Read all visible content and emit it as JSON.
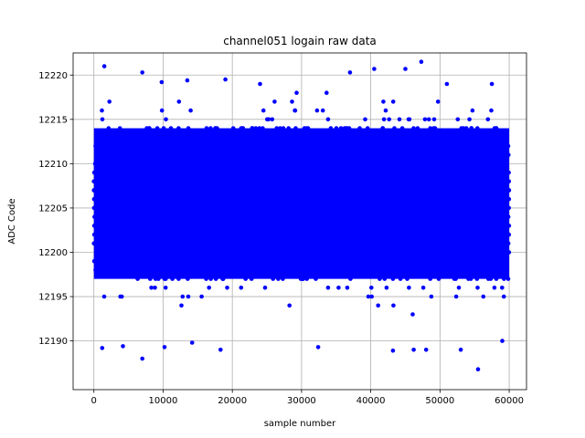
{
  "chart_data": {
    "type": "scatter",
    "title": "channel051 logain raw data",
    "xlabel": "sample number",
    "ylabel": "ADC Code",
    "xlim": [
      -3000,
      62500
    ],
    "ylim": [
      12184.5,
      12222.5
    ],
    "xticks": [
      0,
      10000,
      20000,
      30000,
      40000,
      50000,
      60000
    ],
    "yticks": [
      12190,
      12195,
      12200,
      12205,
      12210,
      12215,
      12220
    ],
    "grid": true,
    "marker_color": "#0000ff",
    "n_samples": 60000,
    "dense_band": [
      12197,
      12214
    ],
    "outliers": [
      [
        1500,
        12221
      ],
      [
        7000,
        12220.3
      ],
      [
        9800,
        12219.2
      ],
      [
        13500,
        12219.4
      ],
      [
        19000,
        12219.5
      ],
      [
        24000,
        12219
      ],
      [
        37000,
        12220.3
      ],
      [
        40500,
        12220.7
      ],
      [
        45000,
        12220.7
      ],
      [
        47300,
        12221.5
      ],
      [
        51000,
        12219
      ],
      [
        57500,
        12219
      ],
      [
        1200,
        12189.2
      ],
      [
        4200,
        12189.4
      ],
      [
        7000,
        12188
      ],
      [
        10200,
        12189.3
      ],
      [
        14200,
        12189.8
      ],
      [
        18300,
        12189
      ],
      [
        32400,
        12189.3
      ],
      [
        43200,
        12188.9
      ],
      [
        46200,
        12189
      ],
      [
        48000,
        12189
      ],
      [
        53000,
        12189
      ],
      [
        55500,
        12186.8
      ],
      [
        59000,
        12190
      ]
    ]
  }
}
